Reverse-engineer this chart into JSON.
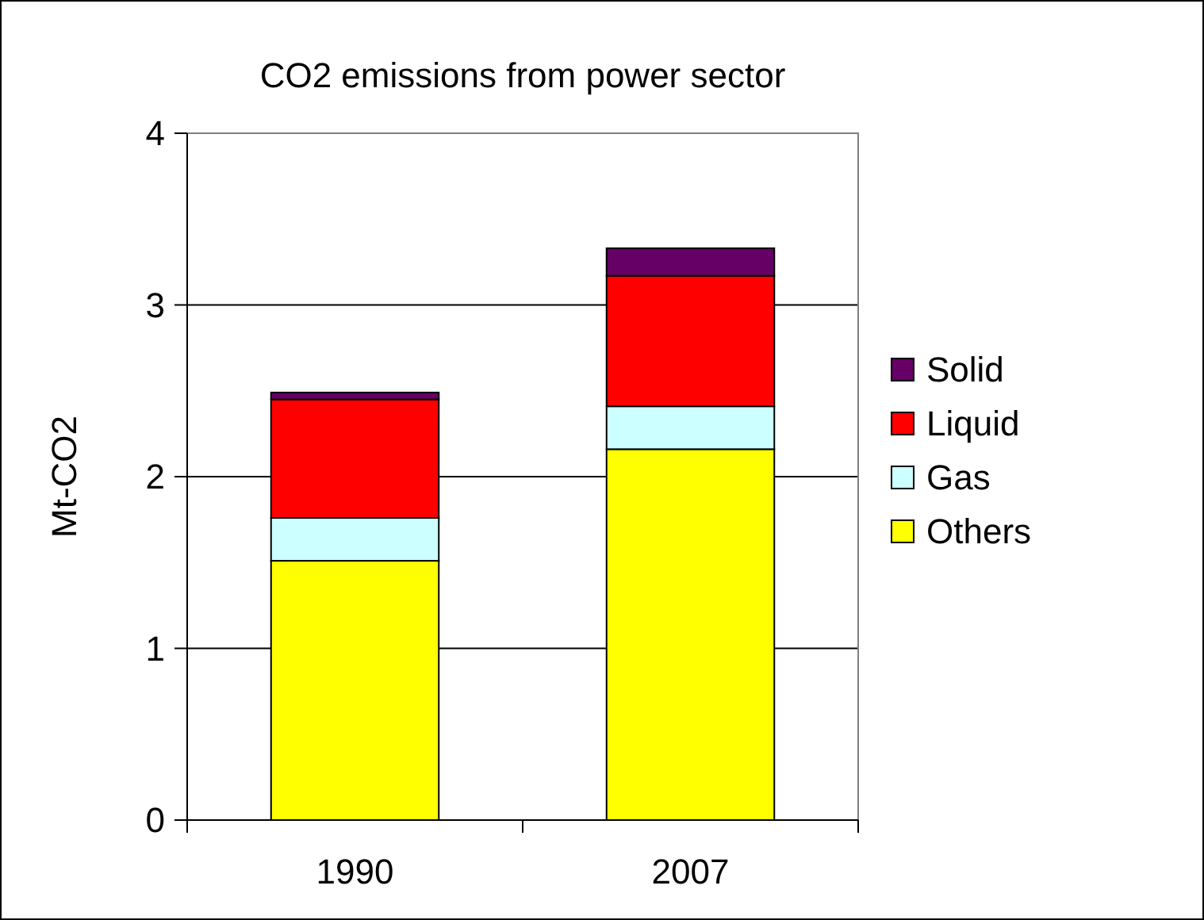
{
  "chart_data": {
    "type": "bar",
    "title": "CO2 emissions from power sector",
    "ylabel": "Mt-CO2",
    "categories": [
      "1990",
      "2007"
    ],
    "stacked": true,
    "series": [
      {
        "name": "Others",
        "color": "#ffff00",
        "values": [
          1.51,
          2.16
        ]
      },
      {
        "name": "Gas",
        "color": "#ccffff",
        "values": [
          0.25,
          0.25
        ]
      },
      {
        "name": "Liquid",
        "color": "#ff0000",
        "values": [
          0.69,
          0.76
        ]
      },
      {
        "name": "Solid",
        "color": "#660066",
        "values": [
          0.04,
          0.16
        ]
      }
    ],
    "ylim": [
      0,
      4
    ],
    "yticks": [
      0,
      1,
      2,
      3,
      4
    ],
    "grid": "y",
    "legend": "right"
  }
}
